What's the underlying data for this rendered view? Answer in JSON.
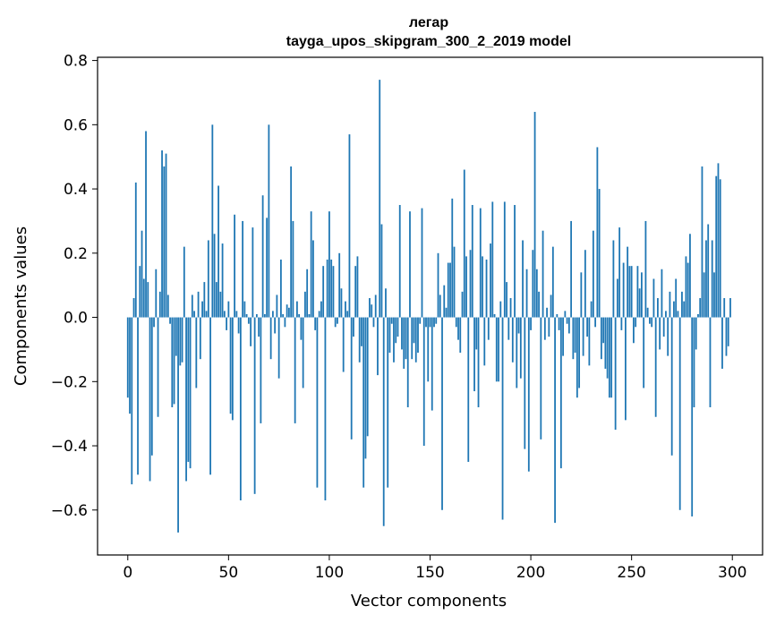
{
  "chart_data": {
    "type": "bar",
    "title": "легар",
    "subtitle": "tayga_upos_skipgram_300_2_2019 model",
    "xlabel": "Vector components",
    "ylabel": "Components values",
    "xlim": [
      -15,
      315
    ],
    "ylim": [
      -0.74,
      0.81
    ],
    "xticks": [
      0,
      50,
      100,
      150,
      200,
      250,
      300
    ],
    "xtick_labels": [
      "0",
      "50",
      "100",
      "150",
      "200",
      "250",
      "300"
    ],
    "yticks": [
      -0.6,
      -0.4,
      -0.2,
      0.0,
      0.2,
      0.4,
      0.6,
      0.8
    ],
    "ytick_labels": [
      "−0.6",
      "−0.4",
      "−0.2",
      "0.0",
      "0.2",
      "0.4",
      "0.6",
      "0.8"
    ],
    "bar_color": "#1f77b4",
    "x_start": 0,
    "values": [
      -0.25,
      -0.3,
      -0.52,
      0.06,
      0.42,
      -0.49,
      0.16,
      0.27,
      0.12,
      0.58,
      0.11,
      -0.51,
      -0.43,
      -0.03,
      0.15,
      -0.31,
      0.08,
      0.52,
      0.47,
      0.51,
      0.07,
      -0.02,
      -0.28,
      -0.27,
      -0.12,
      -0.67,
      -0.15,
      -0.14,
      0.22,
      -0.51,
      -0.45,
      -0.47,
      0.07,
      0.02,
      -0.22,
      0.08,
      -0.13,
      0.05,
      0.11,
      0.02,
      0.24,
      -0.49,
      0.6,
      0.26,
      0.11,
      0.41,
      0.08,
      0.23,
      0.02,
      -0.04,
      0.05,
      -0.3,
      -0.32,
      0.32,
      0.02,
      -0.05,
      -0.57,
      0.3,
      0.05,
      0.01,
      -0.02,
      -0.09,
      0.28,
      -0.55,
      0.01,
      -0.06,
      -0.33,
      0.38,
      0.01,
      0.31,
      0.6,
      -0.13,
      0.02,
      -0.05,
      0.07,
      -0.19,
      0.18,
      0.01,
      -0.03,
      0.04,
      0.03,
      0.47,
      0.3,
      -0.33,
      0.05,
      0.01,
      -0.07,
      -0.22,
      0.08,
      0.15,
      0.01,
      0.33,
      0.24,
      -0.04,
      -0.53,
      0.02,
      0.05,
      0.16,
      -0.57,
      0.18,
      0.33,
      0.18,
      0.16,
      -0.03,
      -0.02,
      0.2,
      0.09,
      -0.17,
      0.05,
      0.02,
      0.57,
      -0.38,
      -0.06,
      0.16,
      0.19,
      -0.14,
      -0.09,
      -0.53,
      -0.44,
      -0.37,
      0.06,
      0.04,
      -0.03,
      0.07,
      -0.18,
      0.74,
      0.29,
      -0.65,
      0.09,
      -0.53,
      -0.11,
      -0.02,
      -0.14,
      -0.08,
      -0.06,
      0.35,
      -0.1,
      -0.16,
      -0.13,
      -0.28,
      0.33,
      -0.13,
      -0.08,
      -0.14,
      -0.11,
      -0.02,
      0.34,
      -0.4,
      -0.03,
      -0.2,
      -0.03,
      -0.29,
      -0.03,
      -0.02,
      0.2,
      0.07,
      -0.6,
      0.1,
      0.03,
      0.17,
      0.17,
      0.37,
      0.22,
      -0.03,
      -0.07,
      -0.11,
      0.08,
      0.46,
      0.19,
      -0.45,
      0.21,
      0.35,
      -0.23,
      -0.1,
      -0.28,
      0.34,
      0.19,
      -0.15,
      0.18,
      -0.07,
      0.23,
      0.36,
      0.01,
      -0.2,
      -0.2,
      0.05,
      -0.63,
      0.36,
      0.11,
      -0.07,
      0.06,
      -0.14,
      0.35,
      -0.22,
      -0.05,
      -0.19,
      0.24,
      -0.41,
      0.15,
      -0.48,
      -0.04,
      0.21,
      0.64,
      0.15,
      0.08,
      -0.38,
      0.27,
      -0.07,
      0.03,
      -0.06,
      0.07,
      0.22,
      -0.64,
      0.01,
      -0.04,
      -0.47,
      -0.12,
      0.02,
      -0.02,
      -0.05,
      0.3,
      -0.13,
      -0.11,
      -0.25,
      -0.22,
      0.14,
      -0.12,
      0.21,
      -0.06,
      -0.15,
      0.05,
      0.27,
      -0.03,
      0.53,
      0.4,
      -0.13,
      -0.08,
      -0.16,
      -0.19,
      -0.25,
      -0.25,
      0.24,
      -0.35,
      0.12,
      0.28,
      -0.04,
      0.17,
      -0.32,
      0.22,
      0.16,
      0.16,
      -0.08,
      -0.03,
      0.16,
      0.09,
      0.14,
      -0.22,
      0.3,
      0.03,
      -0.02,
      -0.03,
      0.12,
      -0.31,
      0.06,
      -0.1,
      0.15,
      -0.06,
      0.02,
      -0.12,
      0.08,
      -0.43,
      0.05,
      0.12,
      0.02,
      -0.6,
      0.08,
      0.05,
      0.19,
      0.17,
      0.26,
      -0.62,
      -0.28,
      -0.1,
      0.01,
      0.06,
      0.47,
      0.14,
      0.24,
      0.29,
      -0.28,
      0.24,
      0.14,
      0.44,
      0.48,
      0.43,
      -0.16,
      0.06,
      -0.12,
      -0.09,
      0.06
    ]
  }
}
